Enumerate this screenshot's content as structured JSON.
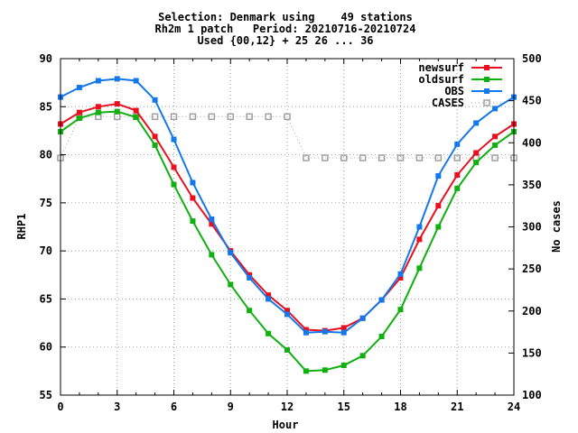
{
  "chart_data": {
    "type": "line",
    "title_lines": [
      "Selection: Denmark using    49 stations",
      "Rh2m 1 patch   Period: 20210716-20210724",
      "Used {00,12} + 25 26 ... 36"
    ],
    "xlabel": "Hour",
    "ylabel": "RHP1",
    "y2label": "No cases",
    "xlim": [
      0,
      24
    ],
    "ylim": [
      55,
      90
    ],
    "y2lim": [
      100,
      500
    ],
    "xticks": [
      0,
      3,
      6,
      9,
      12,
      15,
      18,
      21,
      24
    ],
    "yticks": [
      55,
      60,
      65,
      70,
      75,
      80,
      85,
      90
    ],
    "y2ticks": [
      100,
      150,
      200,
      250,
      300,
      350,
      400,
      450,
      500
    ],
    "grid": true,
    "legend_position": "top-right",
    "x": [
      0,
      1,
      2,
      3,
      4,
      5,
      6,
      7,
      8,
      9,
      10,
      11,
      12,
      13,
      14,
      15,
      16,
      17,
      18,
      19,
      20,
      21,
      22,
      23,
      24
    ],
    "series": [
      {
        "name": "newsurf",
        "color": "#e8101e",
        "marker": "filled-square",
        "axis": "y",
        "values": [
          83.2,
          84.4,
          85.0,
          85.3,
          84.6,
          81.9,
          78.7,
          75.5,
          72.8,
          70.0,
          67.5,
          65.4,
          63.8,
          61.8,
          61.7,
          62.0,
          63.0,
          64.9,
          67.2,
          71.2,
          74.7,
          77.9,
          80.2,
          81.9,
          83.2
        ]
      },
      {
        "name": "oldsurf",
        "color": "#10b010",
        "marker": "filled-square",
        "axis": "y",
        "values": [
          82.4,
          83.8,
          84.4,
          84.5,
          83.9,
          81.0,
          76.9,
          73.1,
          69.6,
          66.5,
          63.8,
          61.4,
          59.7,
          57.5,
          57.6,
          58.1,
          59.1,
          61.1,
          63.9,
          68.2,
          72.5,
          76.5,
          79.2,
          81.0,
          82.4
        ]
      },
      {
        "name": "OBS",
        "color": "#1478ec",
        "marker": "filled-square",
        "axis": "y",
        "values": [
          86.0,
          87.0,
          87.7,
          87.9,
          87.7,
          85.7,
          81.6,
          77.1,
          73.3,
          69.8,
          67.2,
          65.0,
          63.4,
          61.5,
          61.6,
          61.5,
          63.0,
          64.9,
          67.6,
          72.5,
          77.8,
          81.1,
          83.3,
          84.8,
          86.0
        ]
      },
      {
        "name": "CASES",
        "color": "#a0a0a0",
        "marker": "open-square",
        "axis": "y2",
        "dashed": true,
        "values": [
          382,
          431,
          431,
          431,
          431,
          431,
          431,
          431,
          431,
          431,
          431,
          431,
          431,
          382,
          382,
          382,
          382,
          382,
          382,
          382,
          382,
          382,
          382,
          382,
          382
        ]
      }
    ]
  }
}
